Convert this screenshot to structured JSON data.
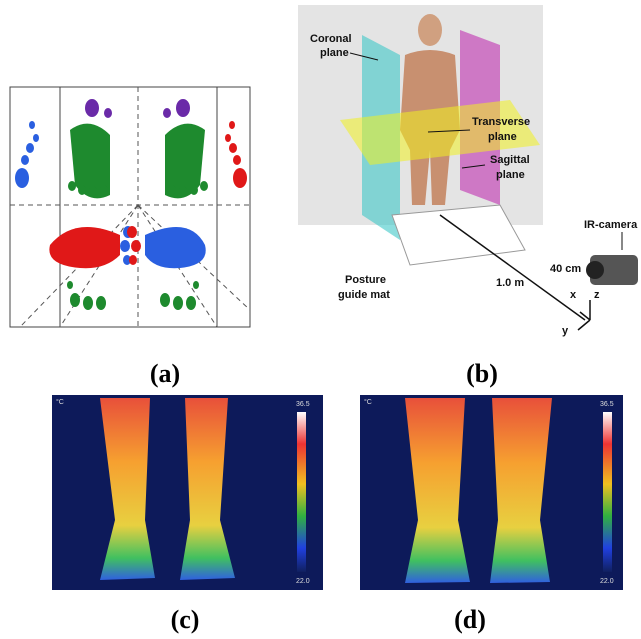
{
  "panels": {
    "a": {
      "label": "(a)"
    },
    "b": {
      "label": "(b)",
      "coronal": [
        "Coronal",
        "plane"
      ],
      "transverse": [
        "Transverse",
        "plane"
      ],
      "sagittal": [
        "Sagittal",
        "plane"
      ],
      "camera": "IR-camera",
      "height": "40 cm",
      "distance": "1.0 m",
      "mat": [
        "Posture",
        "guide mat"
      ],
      "axes": [
        "x",
        "y",
        "z"
      ]
    },
    "c": {
      "label": "(c)",
      "unit": "°C",
      "scale_max": "36.5",
      "scale_min": "22.0"
    },
    "d": {
      "label": "(d)",
      "unit": "°C",
      "scale_max": "36.5",
      "scale_min": "22.0"
    }
  }
}
